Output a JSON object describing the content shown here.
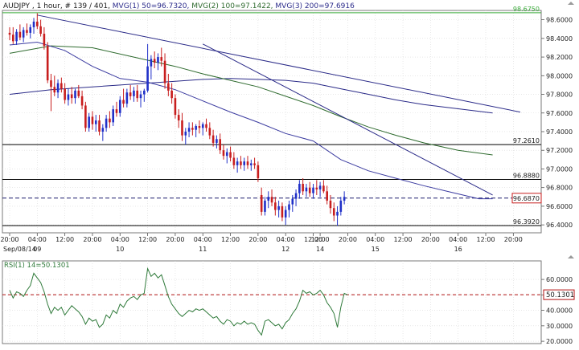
{
  "header": {
    "symbol_info": "AUDJPY , 1 hour, # 139 / 401, ",
    "mvg1_label": "MVG(1) 50=96.7320, ",
    "mvg2_label": "MVG(2) 100=97.1422, ",
    "mvg3_label": "MVG(3) 200=97.6916"
  },
  "colors": {
    "bull": "#2030c8",
    "bear": "#c81e1e",
    "mvg1": "#3b3ba0",
    "mvg2": "#2f6b2f",
    "mvg3": "#2a2a88",
    "rsi": "#2f7a3a",
    "hline": "#000000",
    "top_line": "#3aaa3a",
    "dash": "#1c1c6e",
    "rsi_dash": "#b01010"
  },
  "price_axis": {
    "ticks": [
      "98.6000",
      "98.4000",
      "98.2000",
      "98.0000",
      "97.8000",
      "97.6000",
      "97.4000",
      "97.2000",
      "97.0000",
      "96.8000",
      "96.6000",
      "96.4000"
    ],
    "tick_values": [
      98.6,
      98.4,
      98.2,
      98.0,
      97.8,
      97.6,
      97.4,
      97.2,
      97.0,
      96.8,
      96.6,
      96.4
    ],
    "ylim": [
      96.315,
      98.7
    ],
    "levels": [
      {
        "label": "98.6750",
        "value": 98.675,
        "style": "green"
      },
      {
        "label": "97.2610",
        "value": 97.261,
        "style": "solid"
      },
      {
        "label": "96.8880",
        "value": 96.888,
        "style": "solid"
      },
      {
        "label": "96.6870",
        "value": 96.687,
        "style": "current"
      },
      {
        "label": "96.3920",
        "value": 96.392,
        "style": "solid"
      }
    ]
  },
  "time_axis": {
    "hour_labels": [
      {
        "t": "20:00",
        "i": 0
      },
      {
        "t": "04:00",
        "i": 8
      },
      {
        "t": "12:00",
        "i": 16
      },
      {
        "t": "20:00",
        "i": 24
      },
      {
        "t": "04:00",
        "i": 32
      },
      {
        "t": "12:00",
        "i": 40
      },
      {
        "t": "20:00",
        "i": 48
      },
      {
        "t": "04:00",
        "i": 56
      },
      {
        "t": "12:00",
        "i": 64
      },
      {
        "t": "20:00",
        "i": 72
      },
      {
        "t": "04:00",
        "i": 80
      },
      {
        "t": "12:00",
        "i": 88
      },
      {
        "t": "12:00",
        "i": 90
      },
      {
        "t": "20:00",
        "i": 98
      },
      {
        "t": "04:00",
        "i": 106
      },
      {
        "t": "12:00",
        "i": 114
      },
      {
        "t": "20:00",
        "i": 122
      },
      {
        "t": "04:00",
        "i": 130
      },
      {
        "t": "12:00",
        "i": 138
      },
      {
        "t": "20:00",
        "i": 146
      }
    ],
    "date_labels": [
      {
        "t": "Sep/08/14",
        "i": 0
      },
      {
        "t": "09",
        "i": 8
      },
      {
        "t": "10",
        "i": 32
      },
      {
        "t": "11",
        "i": 56
      },
      {
        "t": "12",
        "i": 80
      },
      {
        "t": "14",
        "i": 90
      },
      {
        "t": "15",
        "i": 106
      },
      {
        "t": "16",
        "i": 130
      }
    ]
  },
  "rsi_panel": {
    "label": "RSI(1) 14=50.1301",
    "current_label": "50.1301",
    "current": 50.1301,
    "ticks": [
      "60.0000",
      "50.0000",
      "40.0000",
      "30.0000",
      "20.0000"
    ],
    "tick_values": [
      60,
      50,
      40,
      30,
      20
    ],
    "ylim": [
      18.5,
      72
    ]
  },
  "chart_data": {
    "type": "candlestick",
    "symbol": "AUDJPY",
    "timeframe": "1 hour",
    "candles": [
      [
        98.46,
        98.52,
        98.38,
        98.44
      ],
      [
        98.44,
        98.52,
        98.34,
        98.37
      ],
      [
        98.37,
        98.5,
        98.33,
        98.47
      ],
      [
        98.47,
        98.55,
        98.38,
        98.41
      ],
      [
        98.41,
        98.52,
        98.36,
        98.49
      ],
      [
        98.49,
        98.56,
        98.43,
        98.46
      ],
      [
        98.46,
        98.55,
        98.4,
        98.52
      ],
      [
        98.52,
        98.62,
        98.45,
        98.58
      ],
      [
        98.58,
        98.67,
        98.5,
        98.53
      ],
      [
        98.53,
        98.6,
        98.42,
        98.45
      ],
      [
        98.45,
        98.52,
        98.28,
        98.32
      ],
      [
        98.32,
        98.36,
        97.92,
        97.95
      ],
      [
        97.95,
        98.02,
        97.62,
        97.88
      ],
      [
        97.88,
        98.0,
        97.78,
        97.82
      ],
      [
        97.82,
        97.96,
        97.76,
        97.92
      ],
      [
        97.92,
        97.98,
        97.82,
        97.86
      ],
      [
        97.86,
        97.92,
        97.7,
        97.74
      ],
      [
        97.74,
        97.86,
        97.68,
        97.8
      ],
      [
        97.8,
        97.88,
        97.7,
        97.76
      ],
      [
        97.76,
        97.86,
        97.7,
        97.84
      ],
      [
        97.84,
        97.9,
        97.76,
        97.78
      ],
      [
        97.78,
        97.84,
        97.64,
        97.68
      ],
      [
        97.68,
        97.72,
        97.4,
        97.44
      ],
      [
        97.44,
        97.6,
        97.4,
        97.56
      ],
      [
        97.56,
        97.62,
        97.42,
        97.48
      ],
      [
        97.48,
        97.58,
        97.4,
        97.52
      ],
      [
        97.52,
        97.58,
        97.36,
        97.4
      ],
      [
        97.4,
        97.48,
        97.3,
        97.44
      ],
      [
        97.44,
        97.58,
        97.4,
        97.54
      ],
      [
        97.54,
        97.62,
        97.44,
        97.5
      ],
      [
        97.5,
        97.68,
        97.46,
        97.64
      ],
      [
        97.64,
        97.72,
        97.56,
        97.6
      ],
      [
        97.6,
        97.78,
        97.56,
        97.74
      ],
      [
        97.74,
        97.86,
        97.66,
        97.7
      ],
      [
        97.7,
        97.86,
        97.66,
        97.82
      ],
      [
        97.82,
        97.9,
        97.74,
        97.78
      ],
      [
        97.78,
        97.88,
        97.72,
        97.84
      ],
      [
        97.84,
        97.9,
        97.72,
        97.76
      ],
      [
        97.76,
        97.84,
        97.66,
        97.8
      ],
      [
        97.8,
        97.86,
        97.72,
        97.84
      ],
      [
        97.84,
        98.34,
        97.82,
        98.1
      ],
      [
        98.1,
        98.22,
        97.96,
        98.18
      ],
      [
        98.18,
        98.26,
        98.08,
        98.14
      ],
      [
        98.14,
        98.24,
        98.06,
        98.2
      ],
      [
        98.2,
        98.3,
        98.1,
        98.16
      ],
      [
        98.16,
        98.24,
        97.86,
        97.92
      ],
      [
        97.92,
        98.02,
        97.78,
        97.84
      ],
      [
        97.84,
        97.92,
        97.7,
        97.76
      ],
      [
        97.76,
        97.8,
        97.54,
        97.58
      ],
      [
        97.58,
        97.64,
        97.44,
        97.52
      ],
      [
        97.52,
        97.6,
        97.3,
        97.36
      ],
      [
        97.36,
        97.44,
        97.26,
        97.4
      ],
      [
        97.4,
        97.5,
        97.34,
        97.44
      ],
      [
        97.44,
        97.5,
        97.36,
        97.42
      ],
      [
        97.42,
        97.48,
        97.34,
        97.46
      ],
      [
        97.46,
        97.52,
        97.38,
        97.44
      ],
      [
        97.44,
        97.5,
        97.36,
        97.48
      ],
      [
        97.48,
        97.54,
        97.4,
        97.44
      ],
      [
        97.44,
        97.5,
        97.32,
        97.36
      ],
      [
        97.36,
        97.42,
        97.24,
        97.28
      ],
      [
        97.28,
        97.36,
        97.22,
        97.32
      ],
      [
        97.32,
        97.38,
        97.16,
        97.2
      ],
      [
        97.2,
        97.26,
        97.1,
        97.14
      ],
      [
        97.14,
        97.22,
        97.06,
        97.18
      ],
      [
        97.18,
        97.24,
        97.08,
        97.12
      ],
      [
        97.12,
        97.18,
        97.0,
        97.04
      ],
      [
        97.04,
        97.12,
        96.96,
        97.08
      ],
      [
        97.08,
        97.14,
        97.0,
        97.04
      ],
      [
        97.04,
        97.12,
        96.98,
        97.08
      ],
      [
        97.08,
        97.14,
        97.0,
        97.04
      ],
      [
        97.04,
        97.1,
        96.98,
        97.06
      ],
      [
        97.06,
        97.12,
        97.0,
        97.04
      ],
      [
        97.04,
        97.08,
        96.86,
        96.9
      ],
      [
        96.72,
        96.8,
        96.5,
        96.54
      ],
      [
        96.54,
        96.7,
        96.5,
        96.66
      ],
      [
        96.66,
        96.76,
        96.58,
        96.7
      ],
      [
        96.7,
        96.78,
        96.6,
        96.64
      ],
      [
        96.64,
        96.7,
        96.5,
        96.56
      ],
      [
        96.56,
        96.66,
        96.48,
        96.6
      ],
      [
        96.6,
        96.64,
        96.44,
        96.48
      ],
      [
        96.48,
        96.6,
        96.4,
        96.56
      ],
      [
        96.56,
        96.66,
        96.48,
        96.62
      ],
      [
        96.62,
        96.72,
        96.54,
        96.68
      ],
      [
        96.68,
        96.78,
        96.6,
        96.74
      ],
      [
        96.74,
        96.88,
        96.68,
        96.84
      ],
      [
        96.84,
        96.9,
        96.72,
        96.76
      ],
      [
        96.76,
        96.84,
        96.7,
        96.8
      ],
      [
        96.8,
        96.86,
        96.7,
        96.74
      ],
      [
        96.74,
        96.84,
        96.68,
        96.8
      ],
      [
        96.8,
        96.88,
        96.72,
        96.78
      ],
      [
        96.78,
        96.86,
        96.7,
        96.82
      ],
      [
        96.82,
        96.88,
        96.74,
        96.76
      ],
      [
        96.76,
        96.82,
        96.62,
        96.66
      ],
      [
        96.66,
        96.72,
        96.52,
        96.58
      ],
      [
        96.58,
        96.64,
        96.44,
        96.5
      ],
      [
        96.5,
        96.6,
        96.39,
        96.54
      ],
      [
        96.54,
        96.7,
        96.5,
        96.66
      ],
      [
        96.66,
        96.76,
        96.62,
        96.7
      ]
    ],
    "mvg1_50": [
      [
        0,
        98.33
      ],
      [
        8,
        98.36
      ],
      [
        16,
        98.27
      ],
      [
        24,
        98.1
      ],
      [
        32,
        97.97
      ],
      [
        40,
        97.93
      ],
      [
        48,
        97.85
      ],
      [
        56,
        97.73
      ],
      [
        64,
        97.61
      ],
      [
        72,
        97.5
      ],
      [
        80,
        97.38
      ],
      [
        88,
        97.3
      ],
      [
        96,
        97.1
      ],
      [
        104,
        96.98
      ],
      [
        112,
        96.9
      ],
      [
        120,
        96.82
      ],
      [
        128,
        96.75
      ],
      [
        136,
        96.68
      ],
      [
        140,
        96.68
      ]
    ],
    "mvg2_100": [
      [
        0,
        98.24
      ],
      [
        12,
        98.32
      ],
      [
        24,
        98.3
      ],
      [
        36,
        98.2
      ],
      [
        48,
        98.1
      ],
      [
        56,
        98.02
      ],
      [
        64,
        97.95
      ],
      [
        72,
        97.88
      ],
      [
        80,
        97.78
      ],
      [
        88,
        97.68
      ],
      [
        96,
        97.56
      ],
      [
        104,
        97.45
      ],
      [
        112,
        97.36
      ],
      [
        120,
        97.28
      ],
      [
        130,
        97.2
      ],
      [
        140,
        97.15
      ]
    ],
    "mvg3_200": [
      [
        0,
        97.8
      ],
      [
        12,
        97.85
      ],
      [
        24,
        97.88
      ],
      [
        36,
        97.91
      ],
      [
        48,
        97.94
      ],
      [
        56,
        97.96
      ],
      [
        64,
        97.97
      ],
      [
        72,
        97.96
      ],
      [
        80,
        97.95
      ],
      [
        88,
        97.92
      ],
      [
        96,
        97.86
      ],
      [
        104,
        97.8
      ],
      [
        112,
        97.74
      ],
      [
        120,
        97.69
      ],
      [
        140,
        97.6
      ]
    ],
    "trendlines": [
      {
        "from": [
          8,
          98.65
        ],
        "to": [
          148,
          97.61
        ]
      },
      {
        "from": [
          56,
          98.34
        ],
        "to": [
          140,
          96.72
        ]
      }
    ],
    "rsi_14": [
      53,
      48,
      52,
      51,
      49,
      53,
      56,
      64,
      61,
      58,
      52,
      44,
      38,
      42,
      40,
      42,
      37,
      40,
      43,
      41,
      39,
      36,
      31,
      35,
      33,
      34,
      29,
      31,
      37,
      35,
      40,
      38,
      44,
      42,
      46,
      48,
      49,
      47,
      50,
      51,
      67,
      62,
      64,
      61,
      63,
      56,
      49,
      44,
      41,
      38,
      36,
      38,
      40,
      39,
      41,
      40,
      41,
      39,
      37,
      35,
      36,
      33,
      31,
      34,
      33,
      30,
      32,
      31,
      33,
      31,
      32,
      31,
      27,
      24,
      33,
      34,
      32,
      30,
      31,
      28,
      32,
      34,
      38,
      41,
      46,
      53,
      51,
      52,
      50,
      51,
      53,
      50,
      45,
      42,
      38,
      29,
      42,
      51,
      50
    ]
  }
}
